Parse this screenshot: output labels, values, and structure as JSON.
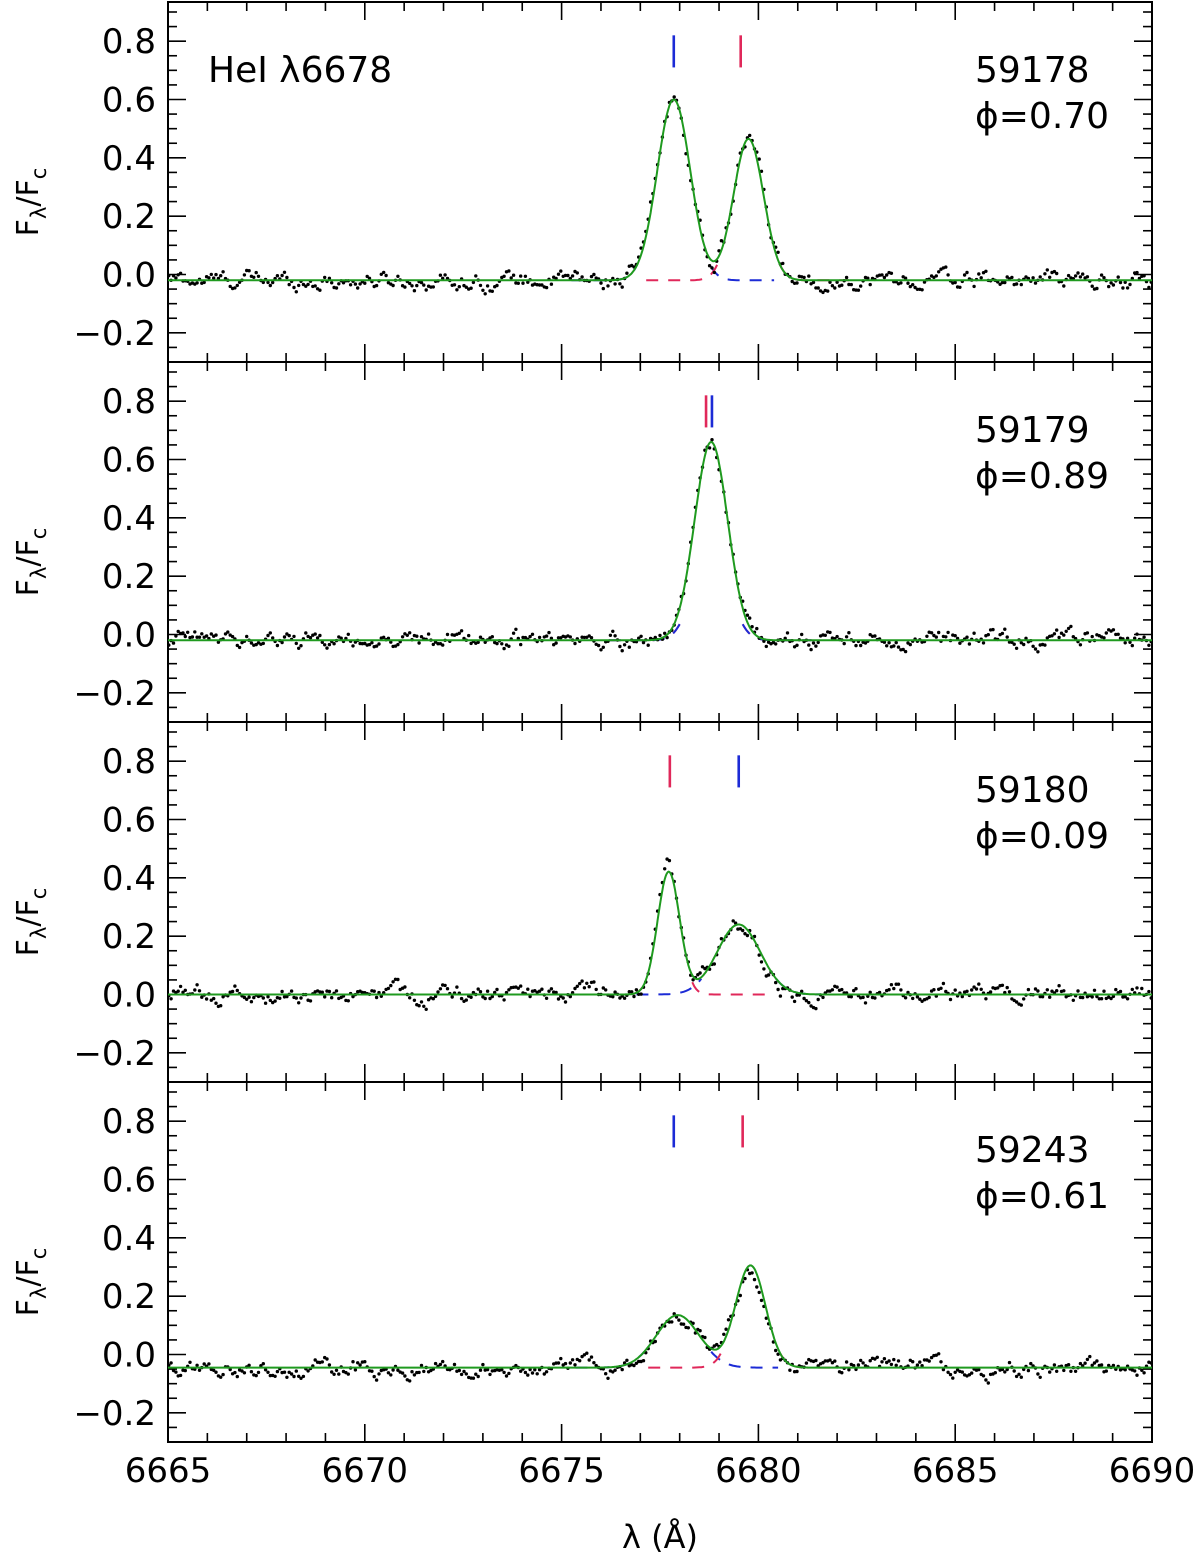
{
  "colors": {
    "fit": "#1f9a1f",
    "component_blue": "#1c2bd6",
    "component_red": "#e0285a",
    "observed": "#000000",
    "axes": "#000000"
  },
  "chart_data": {
    "type": "line",
    "xlabel": "λ (Å)",
    "ylabel": "Fλ/Fc",
    "ylabel_main": "F",
    "ylabel_sub1": "λ",
    "ylabel_slash": "/F",
    "ylabel_sub2": "c",
    "line_label": "HeI  λ6678",
    "xlim": [
      6665,
      6690
    ],
    "ylim": [
      -0.3,
      0.9
    ],
    "xticks": [
      6665,
      6670,
      6675,
      6680,
      6685,
      6690
    ],
    "xtick_labels": [
      "6665",
      "6670",
      "6675",
      "6680",
      "6685",
      "6690"
    ],
    "yticks": [
      -0.2,
      0.0,
      0.2,
      0.4,
      0.6,
      0.8
    ],
    "ytick_labels": [
      "−0.2",
      "0.0",
      "0.2",
      "0.4",
      "0.6",
      "0.8"
    ],
    "panels": [
      {
        "date": "59178",
        "phase": "ϕ=0.70",
        "baseline": -0.02,
        "components": [
          {
            "color": "blue",
            "center": 6677.85,
            "amplitude": 0.62,
            "sigma": 0.42
          },
          {
            "color": "red",
            "center": 6679.75,
            "amplitude": 0.485,
            "sigma": 0.38
          }
        ],
        "markers": [
          {
            "color": "blue",
            "x": 6677.85
          },
          {
            "color": "red",
            "x": 6679.55
          }
        ]
      },
      {
        "date": "59179",
        "phase": "ϕ=0.89",
        "baseline": -0.02,
        "components": [
          {
            "color": "red",
            "center": 6678.8,
            "amplitude": 0.34,
            "sigma": 0.42
          },
          {
            "color": "blue",
            "center": 6678.8,
            "amplitude": 0.34,
            "sigma": 0.42
          }
        ],
        "markers": [
          {
            "color": "red",
            "x": 6678.67
          },
          {
            "color": "blue",
            "x": 6678.82
          }
        ]
      },
      {
        "date": "59180",
        "phase": "ϕ=0.09",
        "baseline": 0.0,
        "components": [
          {
            "color": "red",
            "center": 6677.72,
            "amplitude": 0.42,
            "sigma": 0.28
          },
          {
            "color": "blue",
            "center": 6679.5,
            "amplitude": 0.24,
            "sigma": 0.55
          }
        ],
        "markers": [
          {
            "color": "red",
            "x": 6677.75
          },
          {
            "color": "blue",
            "x": 6679.5
          }
        ]
      },
      {
        "date": "59243",
        "phase": "ϕ=0.61",
        "baseline": -0.045,
        "components": [
          {
            "color": "blue",
            "center": 6677.95,
            "amplitude": 0.18,
            "sigma": 0.55
          },
          {
            "color": "red",
            "center": 6679.8,
            "amplitude": 0.35,
            "sigma": 0.38
          }
        ],
        "markers": [
          {
            "color": "blue",
            "x": 6677.85
          },
          {
            "color": "red",
            "x": 6679.6
          }
        ]
      }
    ]
  }
}
